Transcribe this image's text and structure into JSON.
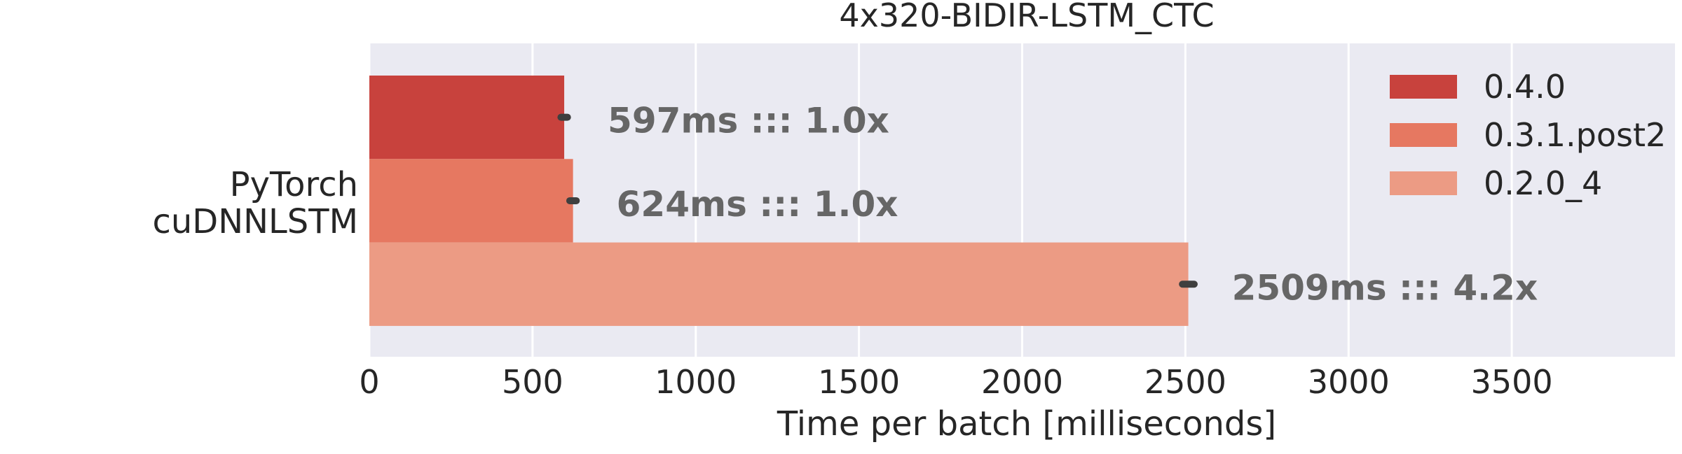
{
  "chart_data": {
    "type": "bar",
    "orientation": "horizontal",
    "title": "4x320-BIDIR-LSTM_CTC",
    "xlabel": "Time per batch [milliseconds]",
    "ylabel": "",
    "category_label_lines": [
      "PyTorch",
      "cuDNNLSTM"
    ],
    "xlim": [
      0,
      4000
    ],
    "xticks": [
      0,
      500,
      1000,
      1500,
      2000,
      2500,
      3000,
      3500
    ],
    "grid": true,
    "legend_position": "top-right",
    "series": [
      {
        "name": "0.4.0",
        "value": 597,
        "error": 10,
        "color": "#c8423d",
        "label": "597ms ::: 1.0x"
      },
      {
        "name": "0.3.1.post2",
        "value": 624,
        "error": 10,
        "color": "#e67861",
        "label": "624ms ::: 1.0x"
      },
      {
        "name": "0.2.0_4",
        "value": 2509,
        "error": 18,
        "color": "#ec9b84",
        "label": "2509ms ::: 4.2x"
      }
    ],
    "colors": {
      "plot_background": "#eaeaf2",
      "grid": "#ffffff",
      "error_bar": "#3f3f3f",
      "bar_label": "#666666",
      "text": "#262626"
    }
  }
}
